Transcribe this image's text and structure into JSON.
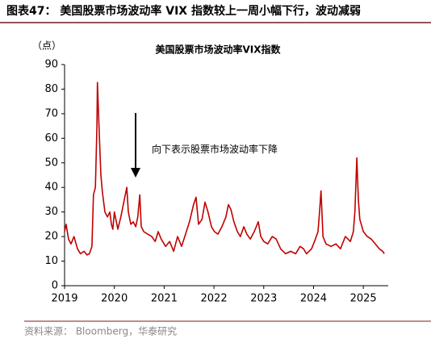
{
  "chart_data": {
    "type": "line",
    "figure_title": "图表47：  美国股票市场波动率 VIX 指数较上一周小幅下行，波动减弱",
    "title": "美国股票市场波动率VIX指数",
    "y_label": "（点）",
    "annotation": "向下表示股票市场波动率下降",
    "source": "资料来源：  Bloomberg，华泰研究",
    "x": [
      2019.0,
      2019.03,
      2019.08,
      2019.13,
      2019.19,
      2019.26,
      2019.32,
      2019.39,
      2019.45,
      2019.5,
      2019.55,
      2019.58,
      2019.62,
      2019.65,
      2019.66,
      2019.7,
      2019.73,
      2019.76,
      2019.81,
      2019.86,
      2019.91,
      2019.94,
      2019.97,
      2020.0,
      2020.04,
      2020.07,
      2020.13,
      2020.2,
      2020.25,
      2020.28,
      2020.33,
      2020.38,
      2020.43,
      2020.47,
      2020.51,
      2020.54,
      2020.59,
      2020.67,
      2020.75,
      2020.82,
      2020.88,
      2020.94,
      2021.03,
      2021.11,
      2021.19,
      2021.27,
      2021.35,
      2021.43,
      2021.51,
      2021.59,
      2021.64,
      2021.69,
      2021.76,
      2021.82,
      2021.88,
      2021.95,
      2022.01,
      2022.08,
      2022.16,
      2022.24,
      2022.29,
      2022.34,
      2022.4,
      2022.47,
      2022.53,
      2022.6,
      2022.66,
      2022.73,
      2022.81,
      2022.89,
      2022.94,
      2023.0,
      2023.08,
      2023.17,
      2023.25,
      2023.34,
      2023.44,
      2023.54,
      2023.64,
      2023.73,
      2023.8,
      2023.86,
      2023.96,
      2024.02,
      2024.09,
      2024.12,
      2024.15,
      2024.19,
      2024.25,
      2024.35,
      2024.45,
      2024.54,
      2024.64,
      2024.74,
      2024.8,
      2024.83,
      2024.87,
      2024.9,
      2024.93,
      2025.0,
      2025.08,
      2025.16,
      2025.24,
      2025.32,
      2025.39,
      2025.42
    ],
    "series": [
      {
        "name": "VIX",
        "color": "#c00000",
        "values": [
          22,
          25,
          19,
          17,
          20,
          15,
          13,
          14,
          12.5,
          13,
          16,
          37,
          40,
          65,
          82.7,
          60,
          45,
          38,
          30,
          28,
          30,
          25,
          23,
          30,
          26,
          23,
          28,
          35,
          40,
          30,
          25,
          26,
          24,
          28,
          37,
          24,
          22,
          21,
          20,
          18,
          22,
          19,
          16,
          18,
          14,
          20,
          16,
          21,
          26,
          33,
          36,
          25,
          27,
          34,
          30,
          24,
          22,
          21,
          24,
          28,
          33,
          31,
          26,
          22,
          20,
          24,
          21,
          19,
          22,
          26,
          20,
          18,
          17,
          20,
          19,
          15,
          13,
          14,
          13,
          16,
          15,
          13,
          15,
          18,
          22,
          30,
          38.6,
          20,
          17,
          16,
          17,
          15,
          20,
          18,
          22,
          30,
          52,
          35,
          27,
          22,
          20,
          19,
          17,
          15,
          14,
          13
        ]
      }
    ],
    "xlim": [
      2019,
      2025.5
    ],
    "xticks": [
      2019,
      2020,
      2021,
      2022,
      2023,
      2024,
      2025
    ],
    "ylim": [
      0,
      90
    ],
    "yticks": [
      0,
      10,
      20,
      30,
      40,
      50,
      60,
      70,
      80,
      90
    ]
  }
}
